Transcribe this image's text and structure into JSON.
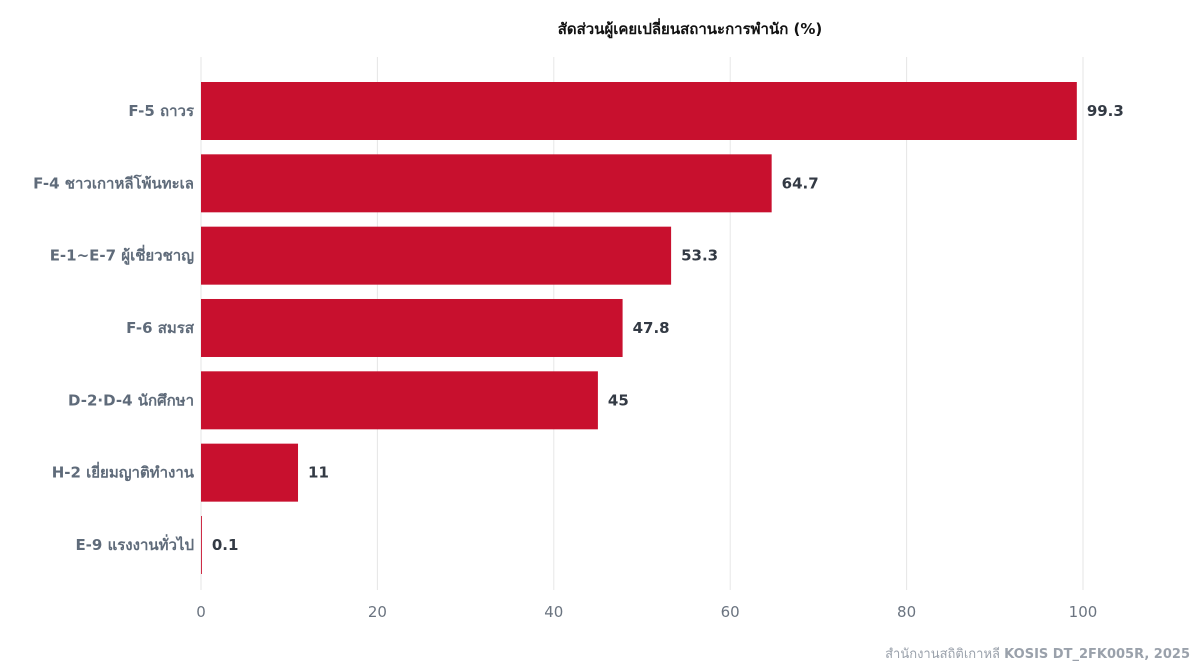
{
  "chart_data": {
    "type": "bar",
    "orientation": "horizontal",
    "title": "สัดส่วนผู้เคยเปลี่ยนสถานะการพำนัก (%)",
    "categories": [
      "F-5 ถาวร",
      "F-4 ชาวเกาหลีโพ้นทะเล",
      "E-1~E-7 ผู้เชี่ยวชาญ",
      "F-6 สมรส",
      "D-2·D-4 นักศึกษา",
      "H-2 เยี่ยมญาติทำงาน",
      "E-9 แรงงานทั่วไป"
    ],
    "values": [
      99.3,
      64.7,
      53.3,
      47.8,
      45,
      11,
      0.1
    ],
    "value_labels": [
      "99.3",
      "64.7",
      "53.3",
      "47.8",
      "45",
      "11",
      "0.1"
    ],
    "xlim": [
      0,
      100
    ],
    "xticks": [
      0,
      20,
      40,
      60,
      80,
      100
    ],
    "xtick_labels": [
      "0",
      "20",
      "40",
      "60",
      "80",
      "100"
    ],
    "grid": "vertical",
    "legend": "none",
    "colors": {
      "bar": "#c8102e",
      "grid": "#e6e6e6",
      "category_text": "#5f6b7a",
      "value_text": "#333a44",
      "tick_text": "#6b7480"
    }
  },
  "source": {
    "prefix": "สำนักงานสถิติเกาหลี",
    "emphasis": "KOSIS DT_2FK005R, 2025"
  }
}
